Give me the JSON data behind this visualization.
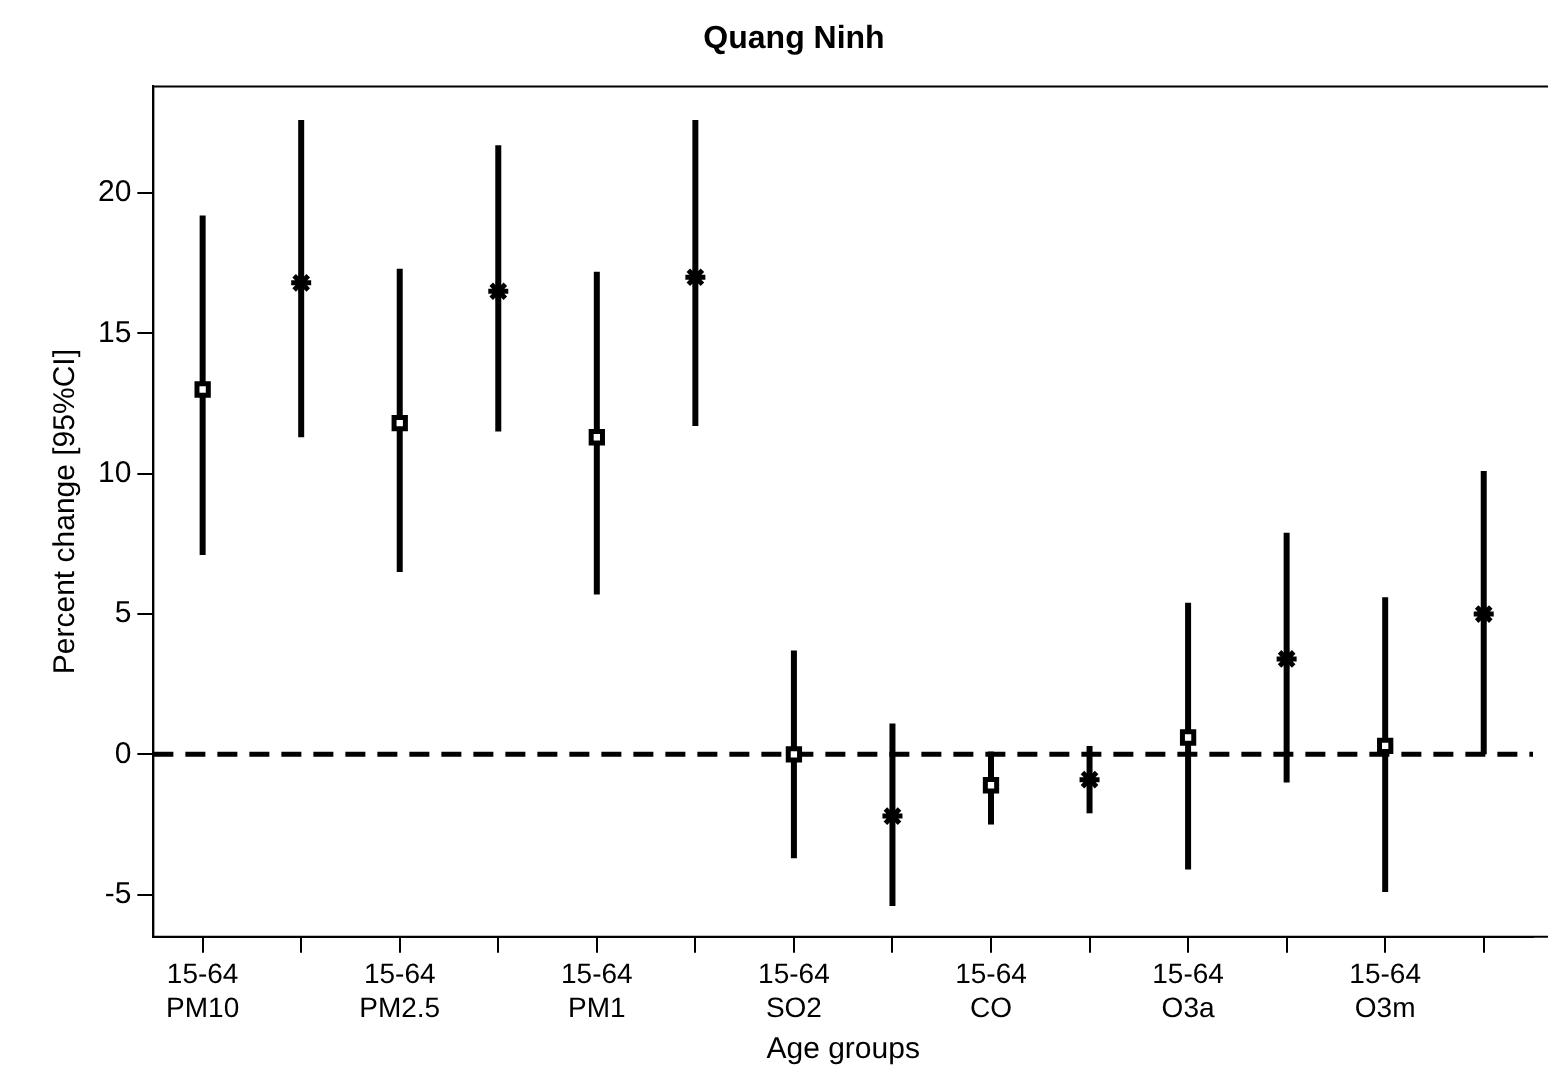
{
  "chart_data": {
    "type": "scatter",
    "title": "Quang Ninh",
    "xlabel": "Age groups",
    "ylabel": "Percent change [95%CI]",
    "categories": [
      "15-64\nPM10",
      null,
      "15-64\nPM2.5",
      null,
      "15-64\nPM1",
      null,
      "15-64\nSO2",
      null,
      "15-64\nCO",
      null,
      "15-64\nO3a",
      null,
      "15-64\nO3m",
      null
    ],
    "series": [
      {
        "color": "#000000",
        "marker": "square",
        "values": [
          13.0,
          null,
          11.8,
          null,
          11.3,
          null,
          0.0,
          null,
          -1.1,
          null,
          0.6,
          null,
          0.3,
          null
        ],
        "errors": [
          [
            7.1,
            19.2
          ],
          null,
          [
            6.5,
            17.3
          ],
          null,
          [
            5.7,
            17.2
          ],
          null,
          [
            -3.7,
            3.7
          ],
          null,
          [
            -2.5,
            0.1
          ],
          null,
          [
            -4.1,
            5.4
          ],
          null,
          [
            -4.9,
            5.6
          ],
          null
        ]
      },
      {
        "color": "#000000",
        "marker": "cross",
        "values": [
          null,
          16.8,
          null,
          16.5,
          null,
          17.0,
          null,
          -2.2,
          null,
          -0.9,
          null,
          3.4,
          null,
          5.0
        ],
        "errors": [
          null,
          [
            11.3,
            22.6
          ],
          null,
          [
            11.5,
            21.7
          ],
          null,
          [
            11.7,
            22.6
          ],
          null,
          [
            -5.4,
            1.1
          ],
          null,
          [
            -2.1,
            0.3
          ],
          null,
          [
            -1.0,
            7.9
          ],
          null,
          [
            0.0,
            10.1
          ]
        ]
      }
    ],
    "ylim": [
      -6.5,
      23.8
    ],
    "yticks": [
      -5,
      0,
      5,
      10,
      15,
      20
    ],
    "grid": false,
    "legend": false,
    "ref_lines": [
      {
        "axis": "y",
        "value": 0,
        "color": "#000000",
        "line_style": "dashed"
      }
    ]
  }
}
